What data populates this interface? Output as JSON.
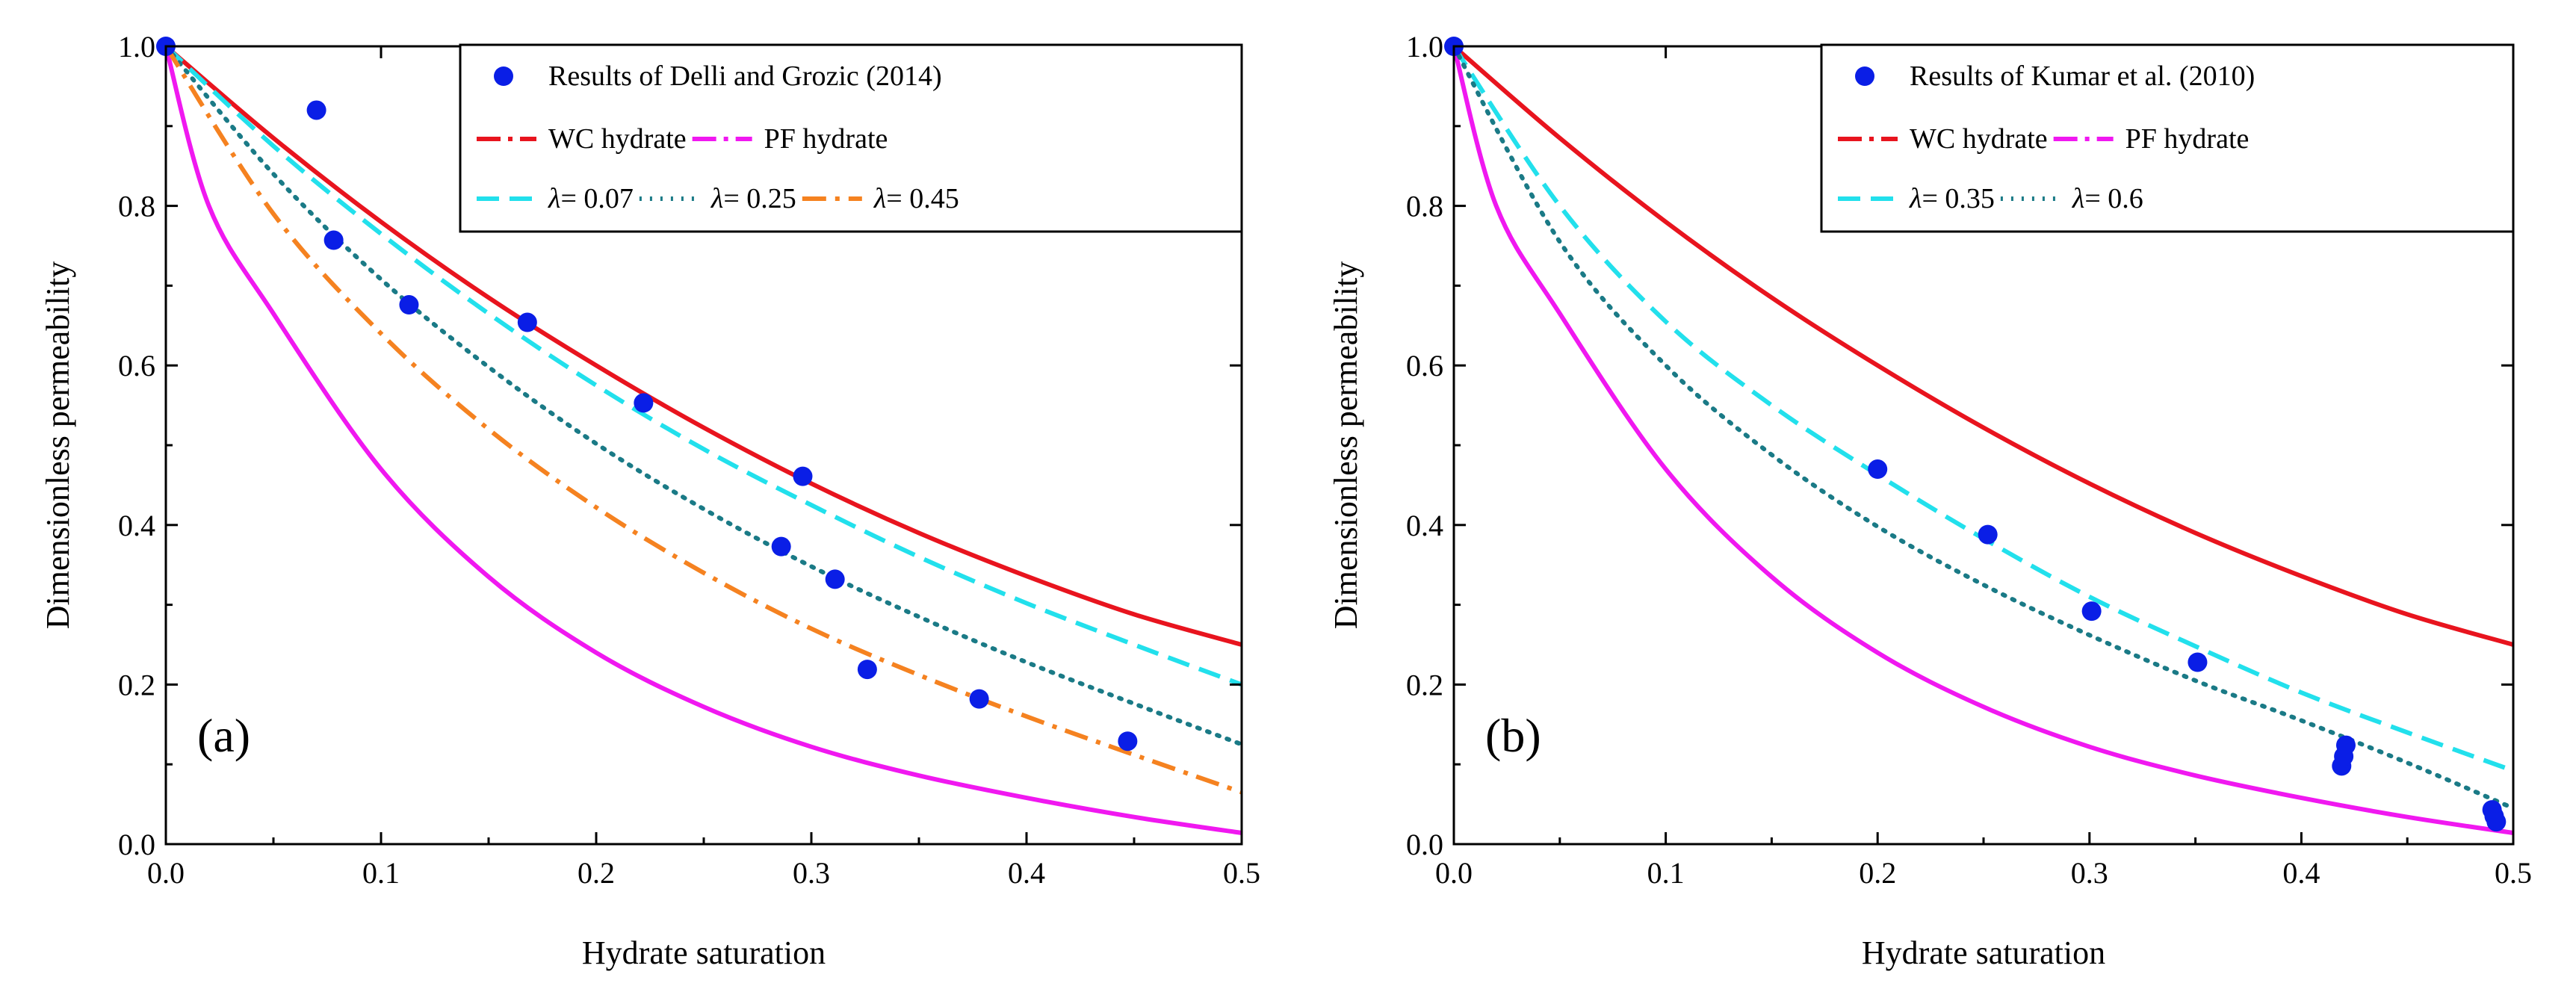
{
  "colors": {
    "points": "#0a1ee6",
    "wc": "#e8141e",
    "pf": "#f018f0",
    "cyan": "#22e0ec",
    "teal": "#1a7a86",
    "orange": "#f58220"
  },
  "chart_data": [
    {
      "type": "line",
      "panel_label": "(a)",
      "xlabel": "Hydrate saturation",
      "ylabel": "Dimensionless permeability",
      "xlim": [
        0,
        0.5
      ],
      "ylim": [
        0,
        1.0
      ],
      "x_ticks": [
        "0.0",
        "0.1",
        "0.2",
        "0.3",
        "0.4",
        "0.5"
      ],
      "y_ticks": [
        "0.0",
        "0.2",
        "0.4",
        "0.6",
        "0.8",
        "1.0"
      ],
      "legend_position": "top-right",
      "scatter": {
        "name": "Results of Delli and Grozic (2014)",
        "x": [
          0.0,
          0.07,
          0.078,
          0.113,
          0.168,
          0.222,
          0.286,
          0.296,
          0.311,
          0.326,
          0.378,
          0.447
        ],
        "y": [
          1.0,
          0.92,
          0.757,
          0.676,
          0.654,
          0.553,
          0.373,
          0.461,
          0.332,
          0.219,
          0.182,
          0.129
        ]
      },
      "series": [
        {
          "name": "WC hydrate",
          "style": "wc",
          "x": [
            0,
            0.05,
            0.1,
            0.15,
            0.2,
            0.25,
            0.3,
            0.35,
            0.4,
            0.45,
            0.5
          ],
          "y": [
            1.0,
            0.885,
            0.78,
            0.685,
            0.6,
            0.522,
            0.452,
            0.39,
            0.336,
            0.288,
            0.25
          ]
        },
        {
          "name": "PF hydrate",
          "style": "pf",
          "x": [
            0,
            0.02,
            0.05,
            0.1,
            0.15,
            0.2,
            0.25,
            0.3,
            0.35,
            0.4,
            0.45,
            0.5
          ],
          "y": [
            1.0,
            0.8,
            0.665,
            0.47,
            0.335,
            0.24,
            0.172,
            0.122,
            0.086,
            0.058,
            0.034,
            0.014
          ]
        },
        {
          "name": "λ= 0.07",
          "style": "cyan",
          "x": [
            0,
            0.05,
            0.1,
            0.15,
            0.2,
            0.25,
            0.3,
            0.35,
            0.4,
            0.45,
            0.5
          ],
          "y": [
            1.0,
            0.875,
            0.765,
            0.665,
            0.575,
            0.495,
            0.425,
            0.36,
            0.302,
            0.25,
            0.2
          ]
        },
        {
          "name": "λ= 0.25",
          "style": "teal",
          "x": [
            0,
            0.05,
            0.1,
            0.15,
            0.2,
            0.25,
            0.3,
            0.35,
            0.4,
            0.45,
            0.5
          ],
          "y": [
            1.0,
            0.84,
            0.708,
            0.598,
            0.502,
            0.42,
            0.348,
            0.285,
            0.228,
            0.176,
            0.125
          ]
        },
        {
          "name": "λ= 0.45",
          "style": "orange",
          "x": [
            0,
            0.05,
            0.1,
            0.15,
            0.2,
            0.25,
            0.3,
            0.35,
            0.4,
            0.45,
            0.5
          ],
          "y": [
            1.0,
            0.79,
            0.64,
            0.52,
            0.422,
            0.34,
            0.27,
            0.212,
            0.16,
            0.112,
            0.065
          ]
        }
      ],
      "legend": [
        [
          {
            "ref": "scatter",
            "label": "Results of Delli and Grozic (2014)"
          }
        ],
        [
          {
            "ref": 0,
            "label": "WC hydrate"
          },
          {
            "ref": 1,
            "label": "PF hydrate"
          }
        ],
        [
          {
            "ref": 2,
            "label": "= 0.07",
            "lambda": "λ"
          },
          {
            "ref": 3,
            "label": "= 0.25",
            "lambda": "λ"
          },
          {
            "ref": 4,
            "label": "= 0.45",
            "lambda": "λ"
          }
        ]
      ]
    },
    {
      "type": "line",
      "panel_label": "(b)",
      "xlabel": "Hydrate saturation",
      "ylabel": "Dimensionless permeability",
      "xlim": [
        0,
        0.5
      ],
      "ylim": [
        0,
        1.0
      ],
      "x_ticks": [
        "0.0",
        "0.1",
        "0.2",
        "0.3",
        "0.4",
        "0.5"
      ],
      "y_ticks": [
        "0.0",
        "0.2",
        "0.4",
        "0.6",
        "0.8",
        "1.0"
      ],
      "legend_position": "top-right",
      "scatter": {
        "name": "Results of Kumar et al. (2010)",
        "x": [
          0.0,
          0.2,
          0.252,
          0.301,
          0.351,
          0.419,
          0.42,
          0.421,
          0.49,
          0.491,
          0.492
        ],
        "y": [
          1.0,
          0.47,
          0.388,
          0.292,
          0.228,
          0.098,
          0.11,
          0.124,
          0.043,
          0.035,
          0.028
        ]
      },
      "series": [
        {
          "name": "WC hydrate",
          "style": "wc",
          "x": [
            0,
            0.05,
            0.1,
            0.15,
            0.2,
            0.25,
            0.3,
            0.35,
            0.4,
            0.45,
            0.5
          ],
          "y": [
            1.0,
            0.885,
            0.78,
            0.685,
            0.6,
            0.522,
            0.452,
            0.39,
            0.336,
            0.288,
            0.25
          ]
        },
        {
          "name": "PF hydrate",
          "style": "pf",
          "x": [
            0,
            0.02,
            0.05,
            0.1,
            0.15,
            0.2,
            0.25,
            0.3,
            0.35,
            0.4,
            0.45,
            0.5
          ],
          "y": [
            1.0,
            0.8,
            0.665,
            0.47,
            0.335,
            0.24,
            0.172,
            0.122,
            0.086,
            0.058,
            0.034,
            0.014
          ]
        },
        {
          "name": "λ= 0.35",
          "style": "cyan",
          "x": [
            0,
            0.05,
            0.1,
            0.15,
            0.2,
            0.25,
            0.3,
            0.35,
            0.4,
            0.45,
            0.5
          ],
          "y": [
            1.0,
            0.8,
            0.655,
            0.55,
            0.463,
            0.383,
            0.31,
            0.248,
            0.19,
            0.14,
            0.092
          ]
        },
        {
          "name": "λ= 0.6",
          "style": "teal",
          "x": [
            0,
            0.05,
            0.1,
            0.15,
            0.2,
            0.25,
            0.3,
            0.35,
            0.4,
            0.45,
            0.5
          ],
          "y": [
            1.0,
            0.755,
            0.6,
            0.488,
            0.398,
            0.325,
            0.262,
            0.205,
            0.155,
            0.102,
            0.045
          ]
        }
      ],
      "legend": [
        [
          {
            "ref": "scatter",
            "label": "Results of Kumar et al. (2010)"
          }
        ],
        [
          {
            "ref": 0,
            "label": "WC hydrate"
          },
          {
            "ref": 1,
            "label": "PF hydrate"
          }
        ],
        [
          {
            "ref": 2,
            "label": "= 0.35",
            "lambda": "λ"
          },
          {
            "ref": 3,
            "label": "= 0.6",
            "lambda": "λ"
          }
        ]
      ]
    }
  ]
}
